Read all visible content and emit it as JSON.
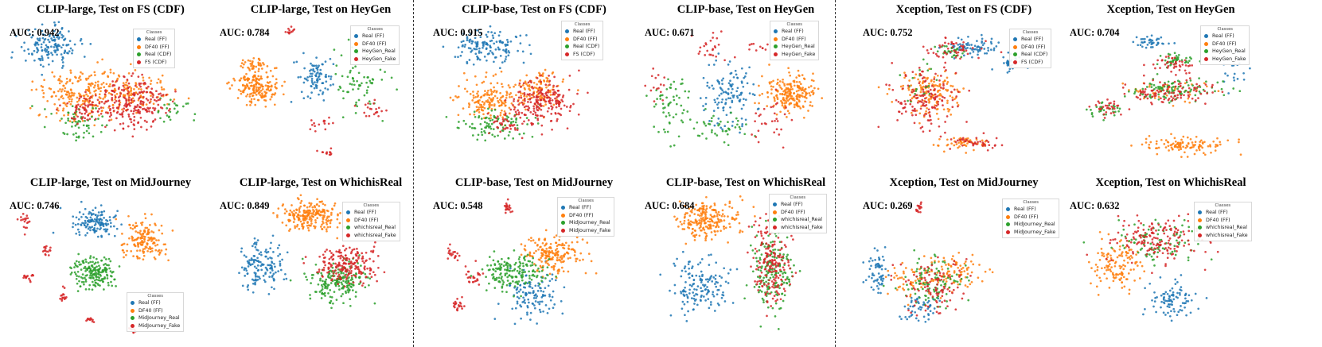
{
  "chart_data": [
    {
      "type": "scatter",
      "title": "CLIP-large, Test on FS (CDF)",
      "auc": "AUC: 0.942",
      "legend_title": "Classes",
      "classes": [
        {
          "name": "Real (FF)",
          "color": "#1f77b4",
          "clusters": [
            [
              0.22,
              0.18,
              0.13,
              0.12,
              150
            ]
          ]
        },
        {
          "name": "DF40 (FF)",
          "color": "#ff7f0e",
          "clusters": [
            [
              0.35,
              0.52,
              0.17,
              0.17,
              200
            ],
            [
              0.6,
              0.5,
              0.15,
              0.12,
              120
            ]
          ]
        },
        {
          "name": "Real (CDF)",
          "color": "#2ca02c",
          "clusters": [
            [
              0.35,
              0.72,
              0.12,
              0.12,
              60
            ],
            [
              0.78,
              0.62,
              0.08,
              0.08,
              25
            ]
          ]
        },
        {
          "name": "FS (CDF)",
          "color": "#d62728",
          "clusters": [
            [
              0.6,
              0.58,
              0.15,
              0.15,
              220
            ],
            [
              0.38,
              0.62,
              0.08,
              0.1,
              60
            ]
          ]
        }
      ]
    },
    {
      "type": "scatter",
      "title": "CLIP-large, Test on HeyGen",
      "auc": "AUC: 0.784",
      "legend_title": "Classes",
      "classes": [
        {
          "name": "Real (FF)",
          "color": "#1f77b4",
          "clusters": [
            [
              0.47,
              0.38,
              0.07,
              0.13,
              90
            ]
          ]
        },
        {
          "name": "DF40 (FF)",
          "color": "#ff7f0e",
          "clusters": [
            [
              0.2,
              0.47,
              0.09,
              0.11,
              180
            ],
            [
              0.2,
              0.32,
              0.06,
              0.06,
              40
            ]
          ]
        },
        {
          "name": "HeyGen_Real",
          "color": "#2ca02c",
          "clusters": [
            [
              0.68,
              0.42,
              0.11,
              0.2,
              70
            ]
          ]
        },
        {
          "name": "HeyGen_Fake",
          "color": "#d62728",
          "clusters": [
            [
              0.36,
              0.07,
              0.02,
              0.03,
              12
            ],
            [
              0.5,
              0.72,
              0.07,
              0.07,
              15
            ],
            [
              0.52,
              0.92,
              0.04,
              0.03,
              12
            ],
            [
              0.74,
              0.62,
              0.06,
              0.06,
              20
            ]
          ]
        }
      ]
    },
    {
      "type": "scatter",
      "title": "CLIP-base, Test on FS (CDF)",
      "auc": "AUC: 0.915",
      "legend_title": "Classes",
      "classes": [
        {
          "name": "Real (FF)",
          "color": "#1f77b4",
          "clusters": [
            [
              0.28,
              0.18,
              0.15,
              0.11,
              140
            ]
          ]
        },
        {
          "name": "DF40 (FF)",
          "color": "#ff7f0e",
          "clusters": [
            [
              0.3,
              0.55,
              0.14,
              0.13,
              170
            ],
            [
              0.52,
              0.48,
              0.12,
              0.12,
              100
            ]
          ]
        },
        {
          "name": "Real (CDF)",
          "color": "#2ca02c",
          "clusters": [
            [
              0.32,
              0.72,
              0.16,
              0.1,
              90
            ]
          ]
        },
        {
          "name": "FS (CDF)",
          "color": "#d62728",
          "clusters": [
            [
              0.55,
              0.55,
              0.13,
              0.15,
              200
            ],
            [
              0.38,
              0.72,
              0.08,
              0.08,
              40
            ]
          ]
        }
      ]
    },
    {
      "type": "scatter",
      "title": "CLIP-base, Test on HeyGen",
      "auc": "AUC: 0.671",
      "legend_title": "Classes",
      "classes": [
        {
          "name": "Real (FF)",
          "color": "#1f77b4",
          "clusters": [
            [
              0.42,
              0.52,
              0.12,
              0.2,
              120
            ]
          ]
        },
        {
          "name": "DF40 (FF)",
          "color": "#ff7f0e",
          "clusters": [
            [
              0.72,
              0.52,
              0.1,
              0.12,
              210
            ]
          ]
        },
        {
          "name": "HeyGen_Real",
          "color": "#2ca02c",
          "clusters": [
            [
              0.16,
              0.6,
              0.1,
              0.2,
              60
            ],
            [
              0.38,
              0.75,
              0.12,
              0.1,
              40
            ]
          ]
        },
        {
          "name": "HeyGen_Fake",
          "color": "#d62728",
          "clusters": [
            [
              0.35,
              0.2,
              0.08,
              0.08,
              25
            ],
            [
              0.08,
              0.45,
              0.05,
              0.15,
              15
            ],
            [
              0.62,
              0.7,
              0.1,
              0.15,
              30
            ],
            [
              0.55,
              0.18,
              0.05,
              0.05,
              10
            ]
          ]
        }
      ]
    },
    {
      "type": "scatter",
      "title": "Xception, Test on FS (CDF)",
      "auc": "AUC: 0.752",
      "legend_title": "Classes",
      "classes": [
        {
          "name": "Real (FF)",
          "color": "#1f77b4",
          "clusters": [
            [
              0.55,
              0.18,
              0.12,
              0.05,
              70
            ],
            [
              0.72,
              0.3,
              0.06,
              0.06,
              30
            ]
          ]
        },
        {
          "name": "DF40 (FF)",
          "color": "#ff7f0e",
          "clusters": [
            [
              0.35,
              0.5,
              0.15,
              0.15,
              140
            ],
            [
              0.5,
              0.85,
              0.1,
              0.04,
              50
            ]
          ]
        },
        {
          "name": "Real (CDF)",
          "color": "#2ca02c",
          "clusters": [
            [
              0.42,
              0.22,
              0.1,
              0.04,
              30
            ],
            [
              0.3,
              0.45,
              0.08,
              0.12,
              20
            ]
          ]
        },
        {
          "name": "FS (CDF)",
          "color": "#d62728",
          "clusters": [
            [
              0.32,
              0.55,
              0.14,
              0.2,
              140
            ],
            [
              0.45,
              0.2,
              0.1,
              0.06,
              50
            ],
            [
              0.55,
              0.85,
              0.12,
              0.05,
              40
            ]
          ]
        }
      ]
    },
    {
      "type": "scatter",
      "title": "Xception, Test on HeyGen",
      "auc": "AUC: 0.704",
      "legend_title": "Classes",
      "classes": [
        {
          "name": "Real (FF)",
          "color": "#1f77b4",
          "clusters": [
            [
              0.4,
              0.15,
              0.08,
              0.04,
              40
            ],
            [
              0.8,
              0.35,
              0.05,
              0.1,
              20
            ]
          ]
        },
        {
          "name": "DF40 (FF)",
          "color": "#ff7f0e",
          "clusters": [
            [
              0.55,
              0.87,
              0.17,
              0.06,
              110
            ],
            [
              0.5,
              0.5,
              0.15,
              0.06,
              40
            ]
          ]
        },
        {
          "name": "HeyGen_Real",
          "color": "#2ca02c",
          "clusters": [
            [
              0.5,
              0.48,
              0.2,
              0.07,
              100
            ],
            [
              0.52,
              0.28,
              0.08,
              0.05,
              40
            ],
            [
              0.2,
              0.62,
              0.08,
              0.05,
              30
            ]
          ]
        },
        {
          "name": "HeyGen_Fake",
          "color": "#d62728",
          "clusters": [
            [
              0.5,
              0.5,
              0.2,
              0.07,
              100
            ],
            [
              0.52,
              0.3,
              0.08,
              0.05,
              40
            ],
            [
              0.2,
              0.62,
              0.08,
              0.05,
              30
            ]
          ]
        }
      ]
    },
    {
      "type": "scatter",
      "title": "CLIP-large, Test on MidJourney",
      "auc": "AUC: 0.746",
      "legend_title": "Classes",
      "classes": [
        {
          "name": "Real (FF)",
          "color": "#1f77b4",
          "clusters": [
            [
              0.42,
              0.2,
              0.1,
              0.1,
              140
            ]
          ]
        },
        {
          "name": "DF40 (FF)",
          "color": "#ff7f0e",
          "clusters": [
            [
              0.65,
              0.33,
              0.09,
              0.12,
              160
            ]
          ]
        },
        {
          "name": "MidJourney_Real",
          "color": "#2ca02c",
          "clusters": [
            [
              0.42,
              0.55,
              0.1,
              0.1,
              180
            ]
          ]
        },
        {
          "name": "MidJourney_Fake",
          "color": "#d62728",
          "clusters": [
            [
              0.1,
              0.2,
              0.02,
              0.05,
              18
            ],
            [
              0.2,
              0.4,
              0.02,
              0.03,
              15
            ],
            [
              0.12,
              0.58,
              0.03,
              0.03,
              15
            ],
            [
              0.28,
              0.72,
              0.02,
              0.05,
              15
            ],
            [
              0.4,
              0.88,
              0.02,
              0.02,
              12
            ],
            [
              0.6,
              0.95,
              0.02,
              0.02,
              10
            ]
          ]
        }
      ]
    },
    {
      "type": "scatter",
      "title": "CLIP-large, Test on WhichisReal",
      "auc": "AUC: 0.849",
      "legend_title": "Classes",
      "classes": [
        {
          "name": "Real (FF)",
          "color": "#1f77b4",
          "clusters": [
            [
              0.22,
              0.5,
              0.09,
              0.14,
              140
            ]
          ]
        },
        {
          "name": "DF40 (FF)",
          "color": "#ff7f0e",
          "clusters": [
            [
              0.45,
              0.15,
              0.12,
              0.1,
              220
            ]
          ]
        },
        {
          "name": "whichisreal_Real",
          "color": "#2ca02c",
          "clusters": [
            [
              0.58,
              0.62,
              0.12,
              0.13,
              200
            ]
          ]
        },
        {
          "name": "whichisreal_Fake",
          "color": "#d62728",
          "clusters": [
            [
              0.62,
              0.5,
              0.12,
              0.12,
              200
            ]
          ]
        }
      ]
    },
    {
      "type": "scatter",
      "title": "CLIP-base, Test on MidJourney",
      "auc": "AUC: 0.548",
      "legend_title": "Classes",
      "classes": [
        {
          "name": "Real (FF)",
          "color": "#1f77b4",
          "clusters": [
            [
              0.5,
              0.7,
              0.12,
              0.15,
              120
            ]
          ]
        },
        {
          "name": "DF40 (FF)",
          "color": "#ff7f0e",
          "clusters": [
            [
              0.6,
              0.42,
              0.12,
              0.12,
              190
            ]
          ]
        },
        {
          "name": "MidJourney_Real",
          "color": "#2ca02c",
          "clusters": [
            [
              0.4,
              0.55,
              0.14,
              0.1,
              170
            ]
          ]
        },
        {
          "name": "MidJourney_Fake",
          "color": "#d62728",
          "clusters": [
            [
              0.38,
              0.1,
              0.02,
              0.04,
              20
            ],
            [
              0.12,
              0.42,
              0.03,
              0.06,
              20
            ],
            [
              0.22,
              0.58,
              0.04,
              0.08,
              25
            ],
            [
              0.15,
              0.78,
              0.03,
              0.05,
              20
            ]
          ]
        }
      ]
    },
    {
      "type": "scatter",
      "title": "CLIP-base, Test on WhichisReal",
      "auc": "AUC: 0.684",
      "legend_title": "Classes",
      "classes": [
        {
          "name": "Real (FF)",
          "color": "#1f77b4",
          "clusters": [
            [
              0.3,
              0.65,
              0.14,
              0.18,
              150
            ]
          ]
        },
        {
          "name": "DF40 (FF)",
          "color": "#ff7f0e",
          "clusters": [
            [
              0.32,
              0.18,
              0.13,
              0.12,
              220
            ]
          ]
        },
        {
          "name": "whichisreal_Real",
          "color": "#2ca02c",
          "clusters": [
            [
              0.62,
              0.55,
              0.08,
              0.25,
              180
            ]
          ]
        },
        {
          "name": "whichisreal_Fake",
          "color": "#d62728",
          "clusters": [
            [
              0.62,
              0.5,
              0.08,
              0.25,
              180
            ]
          ]
        }
      ]
    },
    {
      "type": "scatter",
      "title": "Xception, Test on MidJourney",
      "auc": "AUC: 0.269",
      "legend_title": "Classes",
      "classes": [
        {
          "name": "Real (FF)",
          "color": "#1f77b4",
          "clusters": [
            [
              0.1,
              0.55,
              0.04,
              0.15,
              60
            ],
            [
              0.3,
              0.8,
              0.08,
              0.08,
              50
            ]
          ]
        },
        {
          "name": "DF40 (FF)",
          "color": "#ff7f0e",
          "clusters": [
            [
              0.45,
              0.55,
              0.12,
              0.1,
              90
            ],
            [
              0.25,
              0.62,
              0.08,
              0.12,
              50
            ]
          ]
        },
        {
          "name": "MidJourney_Real",
          "color": "#2ca02c",
          "clusters": [
            [
              0.35,
              0.62,
              0.14,
              0.15,
              100
            ]
          ]
        },
        {
          "name": "MidJourney_Fake",
          "color": "#d62728",
          "clusters": [
            [
              0.35,
              0.65,
              0.14,
              0.18,
              100
            ],
            [
              0.29,
              0.1,
              0.015,
              0.04,
              15
            ]
          ]
        }
      ]
    },
    {
      "type": "scatter",
      "title": "Xception, Test on WhichisReal",
      "auc": "AUC: 0.632",
      "legend_title": "Classes",
      "classes": [
        {
          "name": "Real (FF)",
          "color": "#1f77b4",
          "clusters": [
            [
              0.5,
              0.75,
              0.1,
              0.12,
              90
            ]
          ]
        },
        {
          "name": "DF40 (FF)",
          "color": "#ff7f0e",
          "clusters": [
            [
              0.25,
              0.5,
              0.1,
              0.18,
              130
            ]
          ]
        },
        {
          "name": "whichisreal_Real",
          "color": "#2ca02c",
          "clusters": [
            [
              0.45,
              0.35,
              0.2,
              0.15,
              90
            ]
          ]
        },
        {
          "name": "whichisreal_Fake",
          "color": "#d62728",
          "clusters": [
            [
              0.45,
              0.32,
              0.2,
              0.14,
              160
            ]
          ]
        }
      ]
    }
  ]
}
